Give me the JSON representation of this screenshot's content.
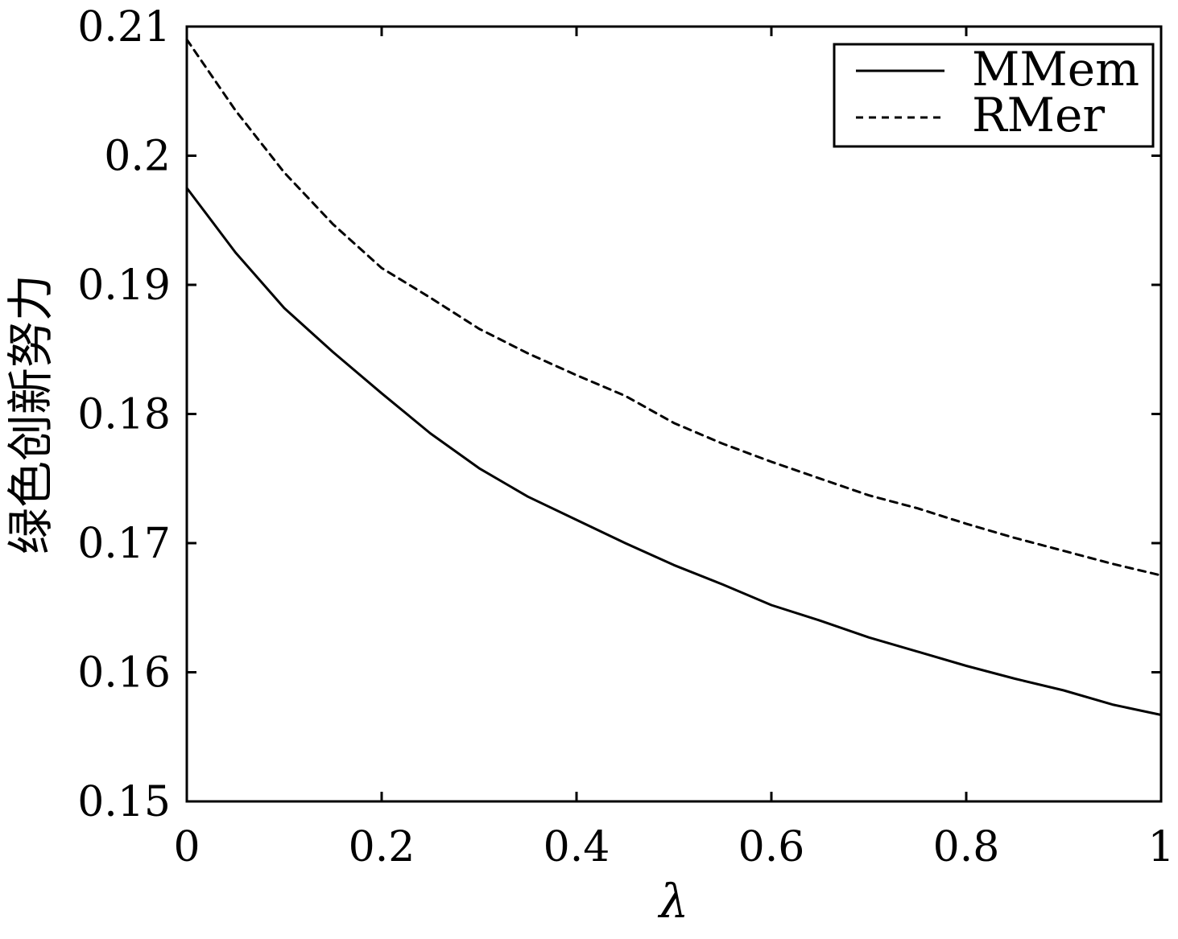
{
  "chart_data": {
    "type": "line",
    "xlabel": "λ",
    "ylabel": "绿色创新努力",
    "xlim": [
      0,
      1
    ],
    "ylim": [
      0.15,
      0.21
    ],
    "xticks": [
      0,
      0.2,
      0.4,
      0.6,
      0.8,
      1
    ],
    "xtick_labels": [
      "0",
      "0.2",
      "0.4",
      "0.6",
      "0.8",
      "1"
    ],
    "yticks": [
      0.15,
      0.16,
      0.17,
      0.18,
      0.19,
      0.2,
      0.21
    ],
    "ytick_labels": [
      "0.15",
      "0.16",
      "0.17",
      "0.18",
      "0.19",
      "0.2",
      "0.21"
    ],
    "grid": false,
    "legend_position": "top-right",
    "x": [
      0,
      0.05,
      0.1,
      0.15,
      0.2,
      0.25,
      0.3,
      0.35,
      0.4,
      0.45,
      0.5,
      0.55,
      0.6,
      0.65,
      0.7,
      0.75,
      0.8,
      0.85,
      0.9,
      0.95,
      1.0
    ],
    "series": [
      {
        "name": "MMem",
        "style": "solid",
        "color": "#000000",
        "values": [
          0.1975,
          0.1925,
          0.1882,
          0.1848,
          0.1816,
          0.1785,
          0.1758,
          0.1736,
          0.1718,
          0.17,
          0.1683,
          0.1668,
          0.1652,
          0.164,
          0.1627,
          0.1616,
          0.1605,
          0.1595,
          0.1586,
          0.1575,
          0.1567
        ]
      },
      {
        "name": "RMer",
        "style": "dashed",
        "color": "#000000",
        "values": [
          0.209,
          0.2035,
          0.1987,
          0.1947,
          0.1913,
          0.189,
          0.1866,
          0.1847,
          0.183,
          0.1814,
          0.1793,
          0.1777,
          0.1763,
          0.175,
          0.1737,
          0.1727,
          0.1715,
          0.1704,
          0.1694,
          0.1684,
          0.1675
        ]
      }
    ]
  }
}
